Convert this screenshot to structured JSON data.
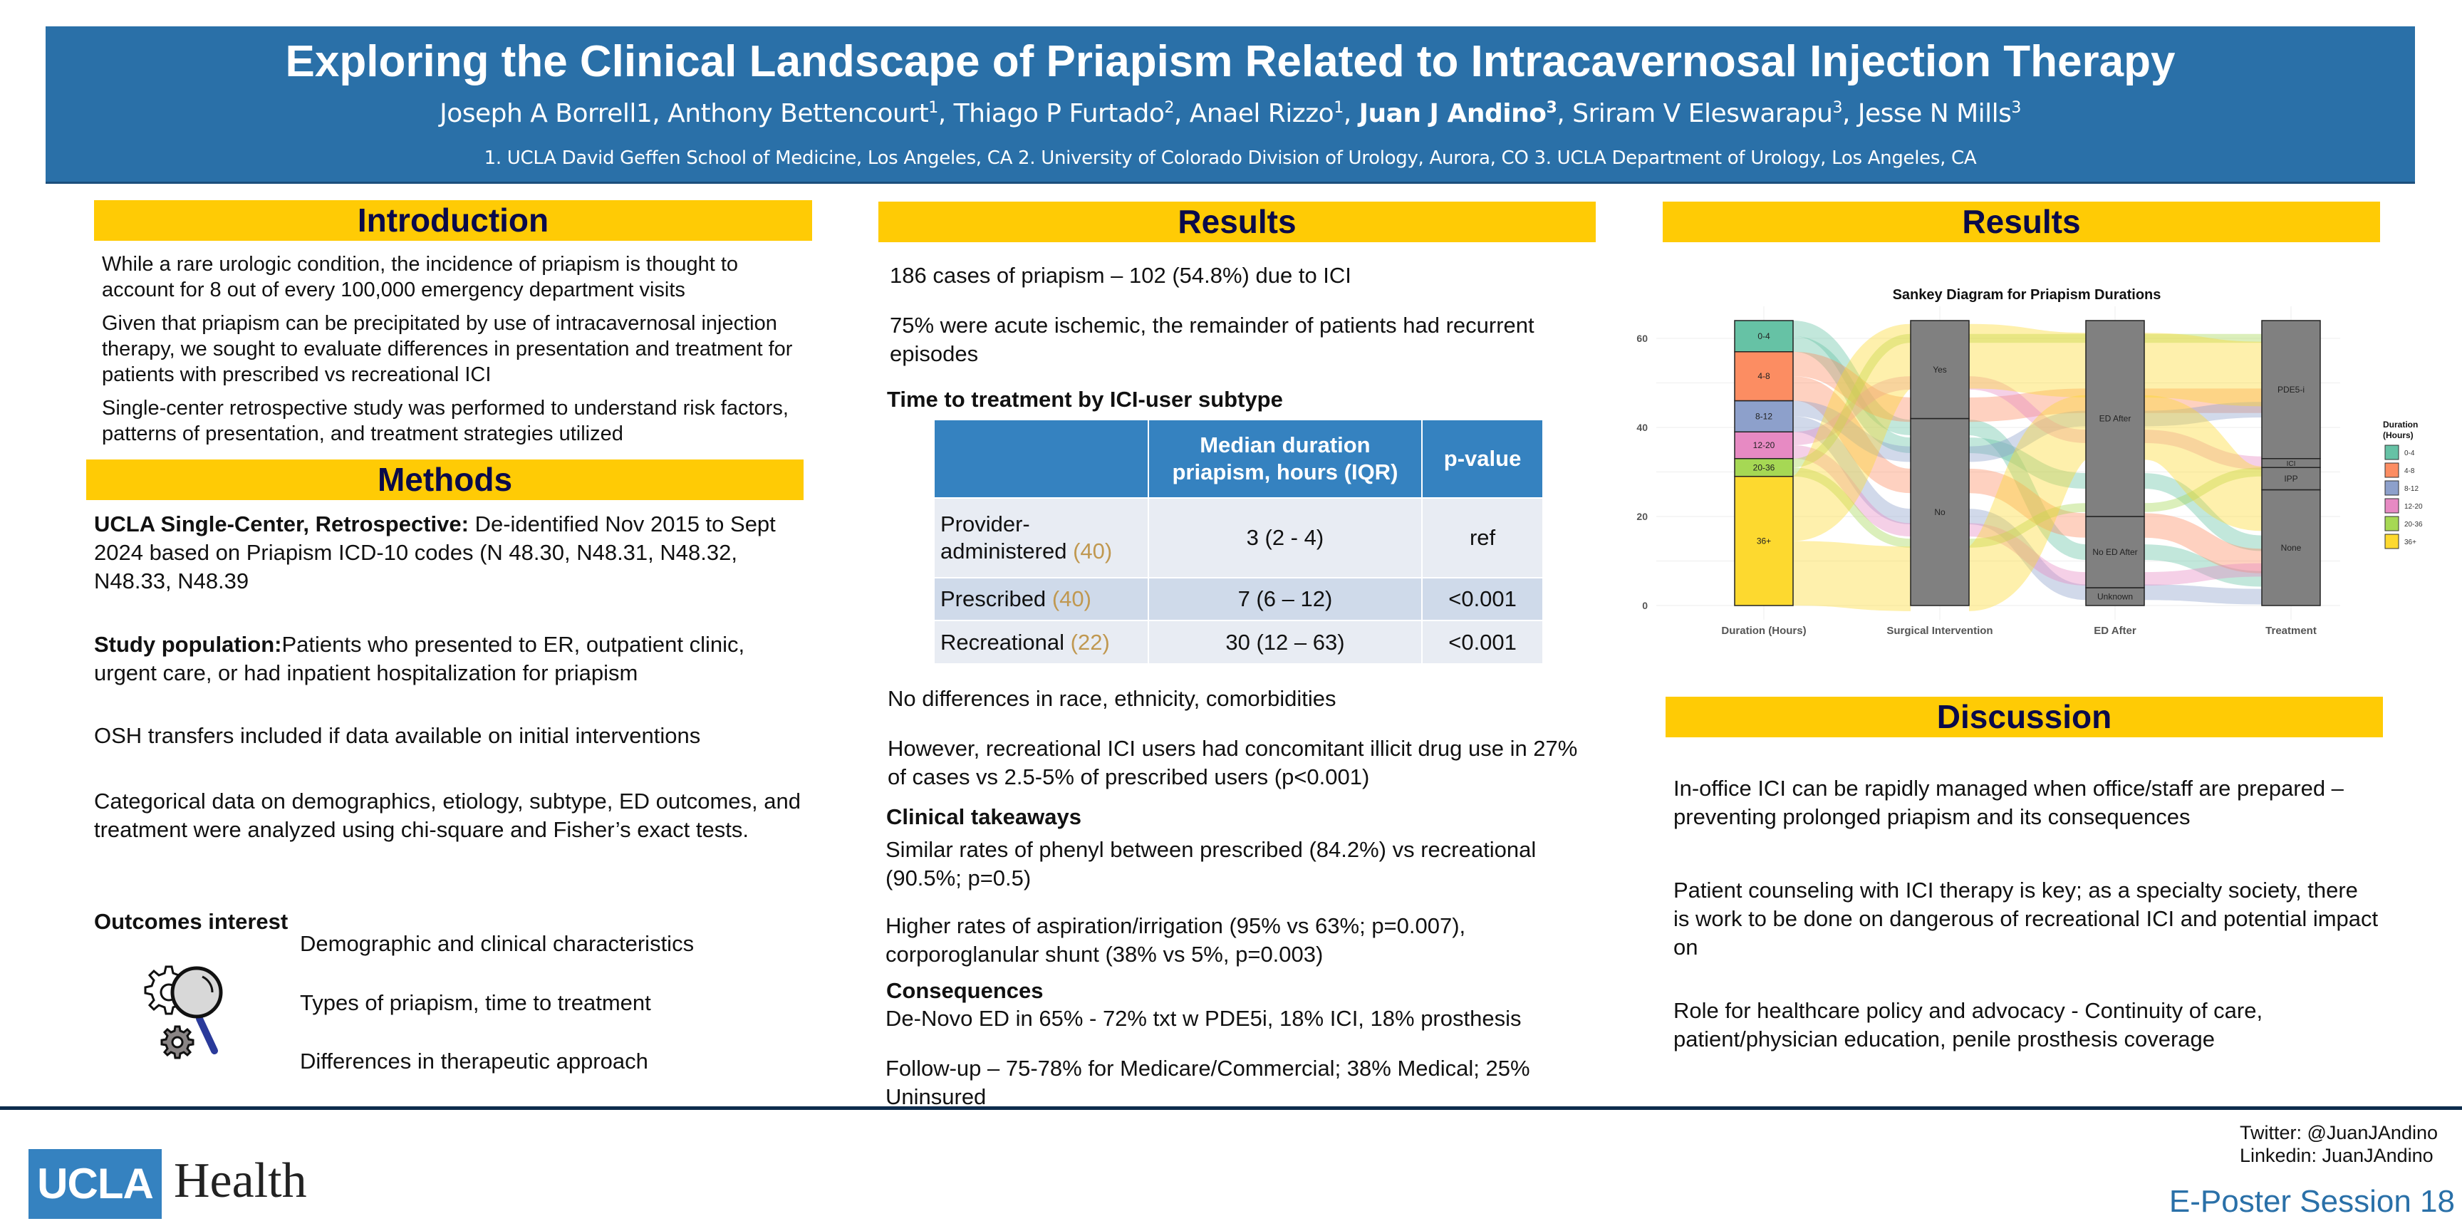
{
  "header": {
    "title": "Exploring the Clinical Landscape of Priapism Related to Intracavernosal Injection Therapy",
    "authors": [
      {
        "name": "Joseph A Borrell1",
        "sup": "",
        "bold": false
      },
      {
        "name": "Anthony Bettencourt",
        "sup": "1",
        "bold": false
      },
      {
        "name": "Thiago P Furtado",
        "sup": "2",
        "bold": false
      },
      {
        "name": "Anael Rizzo",
        "sup": "1",
        "bold": false
      },
      {
        "name": "Juan J Andino",
        "sup": "3",
        "bold": true
      },
      {
        "name": "Sriram V Eleswarapu",
        "sup": "3",
        "bold": false
      },
      {
        "name": "Jesse N Mills",
        "sup": "3",
        "bold": false
      }
    ],
    "affiliations": "1. UCLA David Geffen School of Medicine, Los Angeles, CA 2. University of Colorado Division of Urology, Aurora, CO 3. UCLA Department of Urology, Los Angeles, CA"
  },
  "introduction": {
    "heading": "Introduction",
    "paragraphs": [
      "While a rare urologic condition, the incidence of priapism is thought to account for 8 out of every 100,000 emergency department visits",
      "Given that priapism can be precipitated by use of intracavernosal injection therapy, we sought to evaluate differences in presentation and treatment for patients with prescribed vs recreational ICI",
      "Single-center retrospective study was performed to understand risk factors, patterns of presentation, and treatment strategies utilized"
    ]
  },
  "methods": {
    "heading": "Methods",
    "design_label": "UCLA Single-Center, Retrospective:",
    "design_text": " De-identified Nov 2015 to Sept 2024 based on Priapism ICD-10 codes (N 48.30, N48.31, N48.32, N48.33, N48.39",
    "population_label": "Study population:",
    "population_text": "Patients who presented to ER, outpatient clinic, urgent care, or had inpatient hospitalization for priapism",
    "osh": "OSH transfers included if data available on initial interventions",
    "categorical": "Categorical data on demographics, etiology, subtype, ED outcomes, and treatment were analyzed using chi-square and Fisher’s exact tests.",
    "outcomes_label": "Outcomes interest",
    "outcomes": [
      "Demographic and clinical characteristics",
      "Types of priapism, time to treatment",
      "Differences in therapeutic approach"
    ]
  },
  "results_mid": {
    "heading": "Results",
    "p1": "186 cases of priapism – 102 (54.8%) due to ICI",
    "p2": "75% were acute ischemic, the remainder of patients had recurrent episodes",
    "table_title": "Time to treatment by ICI-user subtype",
    "table": {
      "headers": [
        "",
        "Median duration priapism, hours (IQR)",
        "p-value"
      ],
      "rows": [
        {
          "group": "Provider-administered",
          "n": "(40)",
          "median": "3 (2 - 4)",
          "p": "ref"
        },
        {
          "group": "Prescribed",
          "n": "(40)",
          "median": "7 (6 – 12)",
          "p": "<0.001"
        },
        {
          "group": "Recreational",
          "n": "(22)",
          "median": "30 (12 – 63)",
          "p": "<0.001"
        }
      ]
    },
    "p3": "No differences in race, ethnicity, comorbidities",
    "p4": "However, recreational ICI users had concomitant illicit drug use in 27% of cases vs 2.5-5% of prescribed users (p<0.001)",
    "takeaways_label": "Clinical takeaways",
    "takeaway1": "Similar rates of phenyl between prescribed (84.2%) vs recreational (90.5%; p=0.5)",
    "takeaway2": "Higher rates of aspiration/irrigation (95% vs 63%; p=0.007), corporoglanular shunt (38% vs 5%, p=0.003)",
    "consequences_label": "Consequences",
    "consequence1": "De-Novo ED in 65% - 72% txt w PDE5i, 18% ICI, 18% prosthesis",
    "consequence2": "Follow-up – 75-78% for Medicare/Commercial; 38% Medical; 25% Uninsured"
  },
  "results_right": {
    "heading": "Results"
  },
  "chart_data": {
    "type": "sankey",
    "title": "Sankey Diagram for Priapism Durations",
    "ylim": [
      0,
      64
    ],
    "yticks": [
      0,
      20,
      40,
      60
    ],
    "axes": [
      {
        "label": "Duration (Hours)",
        "nodes": [
          {
            "name": "36+",
            "from": 0,
            "to": 29,
            "color": "#fdd92f"
          },
          {
            "name": "20-36",
            "from": 29,
            "to": 33,
            "color": "#a6d854"
          },
          {
            "name": "12-20",
            "from": 33,
            "to": 39,
            "color": "#e78ac3"
          },
          {
            "name": "8-12",
            "from": 39,
            "to": 46,
            "color": "#8da0cb"
          },
          {
            "name": "4-8",
            "from": 46,
            "to": 57,
            "color": "#fc8d62"
          },
          {
            "name": "0-4",
            "from": 57,
            "to": 64,
            "color": "#66c2a5"
          }
        ]
      },
      {
        "label": "Surgical Intervention",
        "nodes": [
          {
            "name": "No",
            "from": 0,
            "to": 42
          },
          {
            "name": "Yes",
            "from": 42,
            "to": 64
          }
        ]
      },
      {
        "label": "ED After",
        "nodes": [
          {
            "name": "Unknown",
            "from": 0,
            "to": 4
          },
          {
            "name": "No ED After",
            "from": 4,
            "to": 20
          },
          {
            "name": "ED After",
            "from": 20,
            "to": 64
          }
        ]
      },
      {
        "label": "Treatment",
        "nodes": [
          {
            "name": "None",
            "from": 0,
            "to": 26
          },
          {
            "name": "IPP",
            "from": 26,
            "to": 31
          },
          {
            "name": "ICI",
            "from": 31,
            "to": 33
          },
          {
            "name": "PDE5-i",
            "from": 33,
            "to": 64
          }
        ]
      }
    ],
    "legend": {
      "title": "Duration (Hours)",
      "position": "right",
      "items": [
        {
          "label": "0-4",
          "color": "#66c2a5"
        },
        {
          "label": "4-8",
          "color": "#fc8d62"
        },
        {
          "label": "8-12",
          "color": "#8da0cb"
        },
        {
          "label": "12-20",
          "color": "#e78ac3"
        },
        {
          "label": "20-36",
          "color": "#a6d854"
        },
        {
          "label": "36+",
          "color": "#fdd92f"
        }
      ]
    }
  },
  "discussion": {
    "heading": "Discussion",
    "paragraphs": [
      "In-office ICI can be rapidly managed when office/staff are prepared – preventing prolonged priapism and its consequences",
      "Patient counseling with ICI therapy is key; as a specialty society, there is work to be done on dangerous of recreational ICI and potential impact on",
      "Role for healthcare policy and advocacy - Continuity of care, patient/physician education, penile prosthesis coverage"
    ]
  },
  "footer": {
    "logo_box": "UCLA",
    "logo_word": "Health",
    "twitter": "Twitter: @JuanJAndino",
    "linkedin": "Linkedin: JuanJAndino",
    "session": "E-Poster Session 18"
  },
  "colors": {
    "banner": "#2a70a8",
    "section_bar": "#ffcb05",
    "section_text": "#0a0a4a",
    "table_header": "#3582c0",
    "n_count": "#c09850",
    "footer_line": "#0d2c4d"
  }
}
